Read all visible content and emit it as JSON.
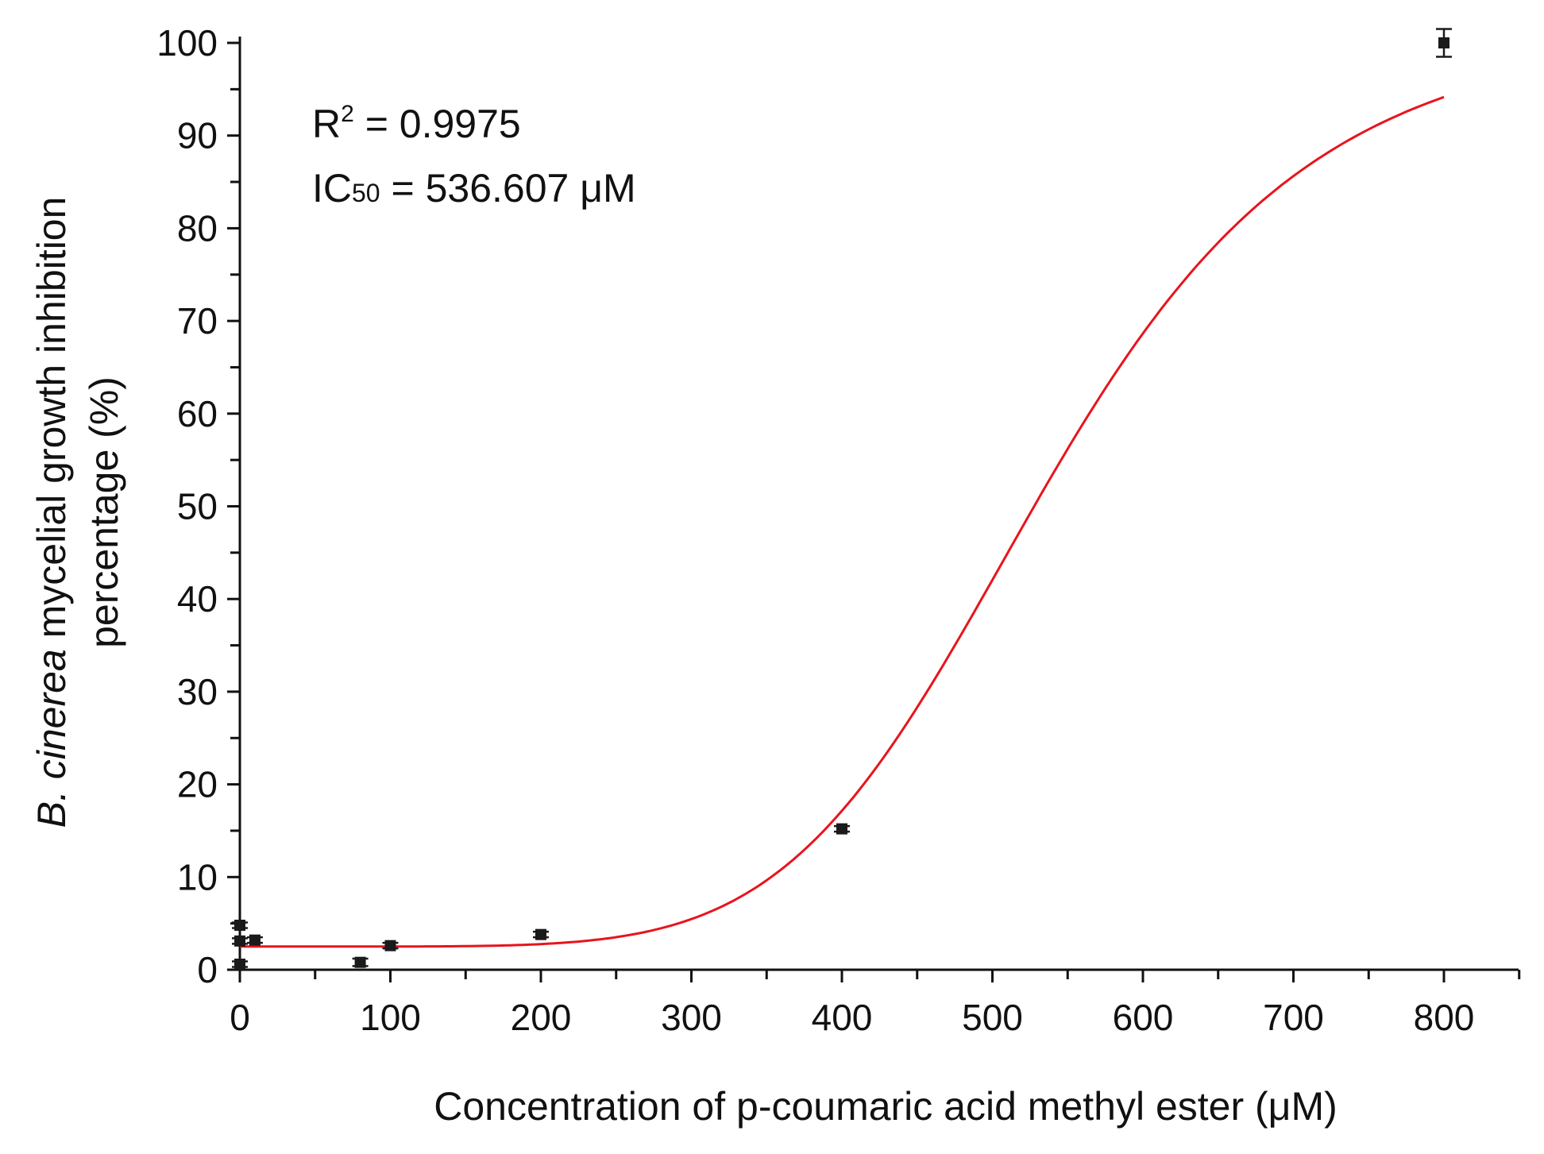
{
  "chart_data": {
    "type": "scatter",
    "xlabel": "Concentration of p-coumaric acid methyl ester (μM)",
    "ylabel_line1_italic": "B. cinerea",
    "ylabel_line1_rest": " mycelial growth inhibition",
    "ylabel_line2": "percentage (%)",
    "xlim": [
      0,
      850
    ],
    "ylim": [
      0,
      100
    ],
    "x_ticks": [
      "0",
      "100",
      "200",
      "300",
      "400",
      "500",
      "600",
      "700",
      "800"
    ],
    "y_ticks": [
      "0",
      "10",
      "20",
      "30",
      "40",
      "50",
      "60",
      "70",
      "80",
      "90",
      "100"
    ],
    "grid": false,
    "annotations": {
      "r2_label": "R",
      "r2_sup": "2",
      "r2_value": " = 0.9975",
      "ic_label": "IC",
      "ic_sub": "50",
      "ic_value": " = 536.607 μM"
    },
    "points": [
      {
        "x": 0,
        "y": 4.8,
        "err": 0.3
      },
      {
        "x": 0,
        "y": 3.1,
        "err": 0.3
      },
      {
        "x": 0,
        "y": 0.6,
        "err": 0.3
      },
      {
        "x": 10,
        "y": 3.2,
        "err": 0.3
      },
      {
        "x": 80,
        "y": 0.8,
        "err": 0.4
      },
      {
        "x": 100,
        "y": 2.6,
        "err": 0.3
      },
      {
        "x": 200,
        "y": 3.8,
        "err": 0.3
      },
      {
        "x": 400,
        "y": 15.2,
        "err": 0.3
      },
      {
        "x": 800,
        "y": 100,
        "err": 1.5
      }
    ],
    "fit_curve": {
      "model": "logistic",
      "bottom": 2.5,
      "top": 102.5,
      "ic50": 536.607,
      "slope": 6.0,
      "color": "#e8141c"
    },
    "marker_color": "#1a1a1a"
  }
}
